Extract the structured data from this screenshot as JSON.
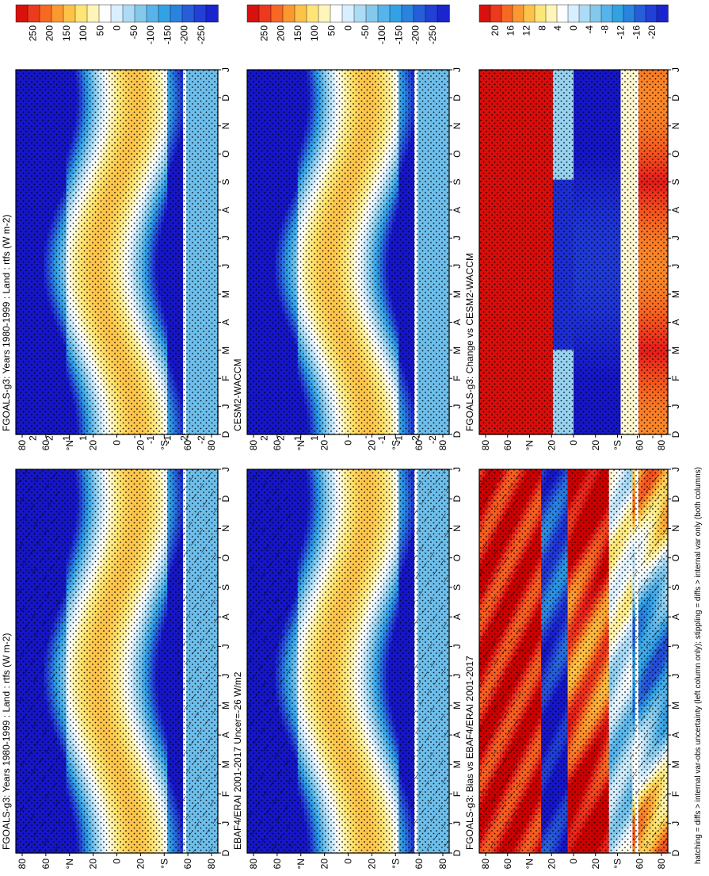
{
  "figure": {
    "footnote": "hatching = diffs > internal var-obs uncertainty (left column only); stippling = diffs > internal var only (both columns)",
    "colors": {
      "red_strong": "#d7191c",
      "orange": "#f57d1f",
      "yellow": "#fdd74a",
      "pale_yellow": "#fff3a8",
      "white": "#ffffff",
      "light_blue": "#7fc7eb",
      "mid_blue": "#2b9ee3",
      "dark_blue": "#1f35d6",
      "frame": "#000000"
    }
  },
  "chart_data": [
    {
      "id": "p-bl",
      "type": "heatmap",
      "title": "FGOALS-g3: Years 1980-1999 : Land : rtfs (W m-2)",
      "x_axis_label_ticks": [
        "D",
        "J",
        "F",
        "M",
        "A",
        "M",
        "J",
        "J",
        "A",
        "S",
        "O",
        "N",
        "D",
        "J"
      ],
      "y_axis_ticks": [
        "80",
        "60",
        "°N",
        "20",
        "0",
        "20",
        "°S",
        "60",
        "80"
      ],
      "ylim": [
        -90,
        90
      ],
      "colorbar": [
        "250",
        "200",
        "150",
        "100",
        "50",
        "0",
        "-50",
        "-100",
        "-150",
        "-200",
        "-250"
      ],
      "pattern": "clim",
      "hatching": true
    },
    {
      "id": "p-ml",
      "type": "heatmap",
      "title": "EBAF4/ERAI 2001-2017 Uncer=-26 W/m2",
      "x_axis_label_ticks": [
        "D",
        "J",
        "F",
        "M",
        "A",
        "M",
        "J",
        "J",
        "A",
        "S",
        "O",
        "N",
        "D",
        "J"
      ],
      "y_axis_ticks": [
        "80",
        "60",
        "°N",
        "20",
        "0",
        "20",
        "°S",
        "60",
        "80"
      ],
      "ylim": [
        -90,
        90
      ],
      "colorbar": [
        "250",
        "200",
        "150",
        "100",
        "50",
        "0",
        "-50",
        "-100",
        "-150",
        "-200",
        "-250"
      ],
      "pattern": "clim",
      "hatching": true
    },
    {
      "id": "p-tl",
      "type": "heatmap",
      "title": "FGOALS-g3: Bias vs EBAF4/ERAI 2001-2017",
      "x_axis_label_ticks": [
        "D",
        "J",
        "F",
        "M",
        "A",
        "M",
        "J",
        "J",
        "A",
        "S",
        "O",
        "N",
        "D",
        "J"
      ],
      "y_axis_ticks": [
        "80",
        "60",
        "°N",
        "20",
        "0",
        "20",
        "°S",
        "60",
        "80"
      ],
      "ylim": [
        -90,
        90
      ],
      "colorbar": [
        "20",
        "16",
        "12",
        "8",
        "4",
        "0",
        "-4",
        "-8",
        "-12",
        "-16",
        "-20"
      ],
      "pattern": "bias",
      "hatching": true
    },
    {
      "id": "p-br",
      "type": "heatmap",
      "title": "FGOALS-g3: Years 1980-1999 : Land : rtfs (W m-2)",
      "x_axis_label_ticks": [
        "D",
        "J",
        "F",
        "M",
        "A",
        "M",
        "J",
        "J",
        "A",
        "S",
        "O",
        "N",
        "D",
        "J"
      ],
      "y_axis_ticks": [
        "80",
        "60",
        "°N",
        "20",
        "0",
        "20",
        "°S",
        "60",
        "80"
      ],
      "ylim": [
        -90,
        90
      ],
      "colorbar": [
        "250",
        "200",
        "150",
        "100",
        "50",
        "0",
        "-50",
        "-100",
        "-150",
        "-200",
        "-250"
      ],
      "pattern": "clim",
      "hatching": false
    },
    {
      "id": "p-mr",
      "type": "heatmap",
      "title": "CESM2-WACCM",
      "x_axis_label_ticks": [
        "D",
        "J",
        "F",
        "M",
        "A",
        "M",
        "J",
        "J",
        "A",
        "S",
        "O",
        "N",
        "D",
        "J"
      ],
      "y_axis_ticks": [
        "80",
        "60",
        "°N",
        "20",
        "0",
        "20",
        "°S",
        "60",
        "80"
      ],
      "ylim": [
        -90,
        90
      ],
      "colorbar": [
        "250",
        "200",
        "150",
        "100",
        "50",
        "0",
        "-50",
        "-100",
        "-150",
        "-200",
        "-250"
      ],
      "pattern": "clim",
      "hatching": false
    },
    {
      "id": "p-tr",
      "type": "heatmap",
      "title": "FGOALS-g3: Change vs CESM2-WACCM",
      "x_axis_label_ticks": [
        "D",
        "J",
        "F",
        "M",
        "A",
        "M",
        "J",
        "J",
        "A",
        "S",
        "O",
        "N",
        "D",
        "J"
      ],
      "y_axis_ticks": [
        "80",
        "60",
        "°N",
        "20",
        "0",
        "20",
        "°S",
        "60",
        "80"
      ],
      "ylim": [
        -90,
        90
      ],
      "colorbar": [
        "20",
        "16",
        "12",
        "8",
        "4",
        "0",
        "-4",
        "-8",
        "-12",
        "-16",
        "-20"
      ],
      "pattern": "change",
      "hatching": false
    }
  ]
}
